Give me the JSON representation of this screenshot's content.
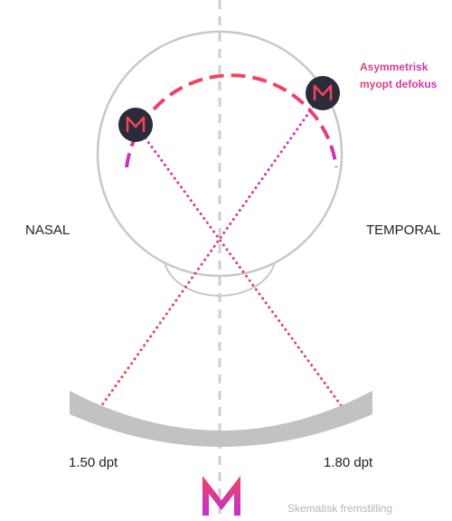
{
  "annotation": [
    "Asymmetrisk",
    "myopt defokus"
  ],
  "side_labels": {
    "left": "NASAL",
    "right": "TEMPORAL"
  },
  "lens_labels": {
    "left": "1.50 dpt",
    "right": "1.80 dpt"
  },
  "footer": "Skematisk fremstilling"
}
